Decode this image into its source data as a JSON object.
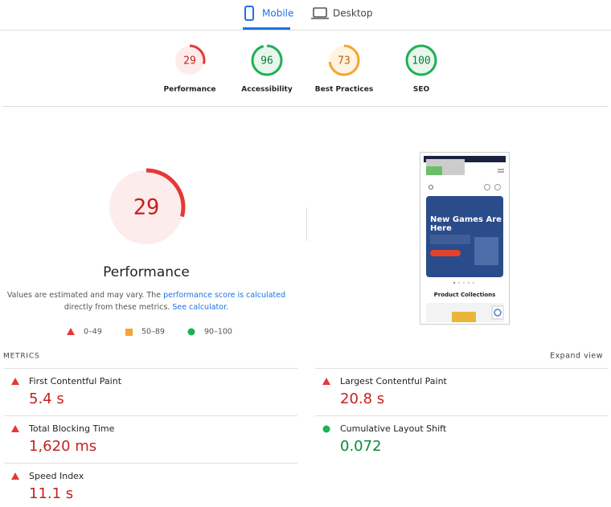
{
  "tabs": [
    {
      "label": "Mobile",
      "active": true
    },
    {
      "label": "Desktop",
      "active": false
    }
  ],
  "scores": [
    {
      "label": "Performance",
      "score": 29,
      "color": "#e53935",
      "text_color": "#c5221f",
      "bg": "#fdecec"
    },
    {
      "label": "Accessibility",
      "score": 96,
      "color": "#1eb152",
      "text_color": "#0a7d36",
      "bg": "#e8f6ec"
    },
    {
      "label": "Best Practices",
      "score": 73,
      "color": "#f4a531",
      "text_color": "#c25d00",
      "bg": "#fff3e2"
    },
    {
      "label": "SEO",
      "score": 100,
      "color": "#1eb152",
      "text_color": "#0a7d36",
      "bg": "#e8f6ec"
    }
  ],
  "main": {
    "score": 29,
    "label": "Performance",
    "color": "#e53935",
    "text_color": "#c5221f",
    "bg": "#fdecec",
    "note": {
      "text1": "Values are estimated and may vary. The ",
      "link1": "performance score is calculated",
      "text2": "directly from these metrics. ",
      "link2": "See calculator",
      "text3": "."
    },
    "legend": [
      "0–49",
      "50–89",
      "90–100"
    ]
  },
  "thumbnail": {
    "hero_title": [
      "New Games Are",
      "Here"
    ],
    "section": "Product Collections"
  },
  "metrics": {
    "title": "METRICS",
    "expand": "Expand view",
    "items": [
      {
        "name": "First Contentful Paint",
        "value": "5.4 s",
        "color": "#c5221f",
        "shape": "triangle"
      },
      {
        "name": "Largest Contentful Paint",
        "value": "20.8 s",
        "color": "#c5221f",
        "shape": "triangle"
      },
      {
        "name": "Total Blocking Time",
        "value": "1,620 ms",
        "color": "#c5221f",
        "shape": "triangle"
      },
      {
        "name": "Cumulative Layout Shift",
        "value": "0.072",
        "color": "#0a8a3a",
        "shape": "circle"
      },
      {
        "name": "Speed Index",
        "value": "11.1 s",
        "color": "#c5221f",
        "shape": "triangle"
      }
    ]
  }
}
